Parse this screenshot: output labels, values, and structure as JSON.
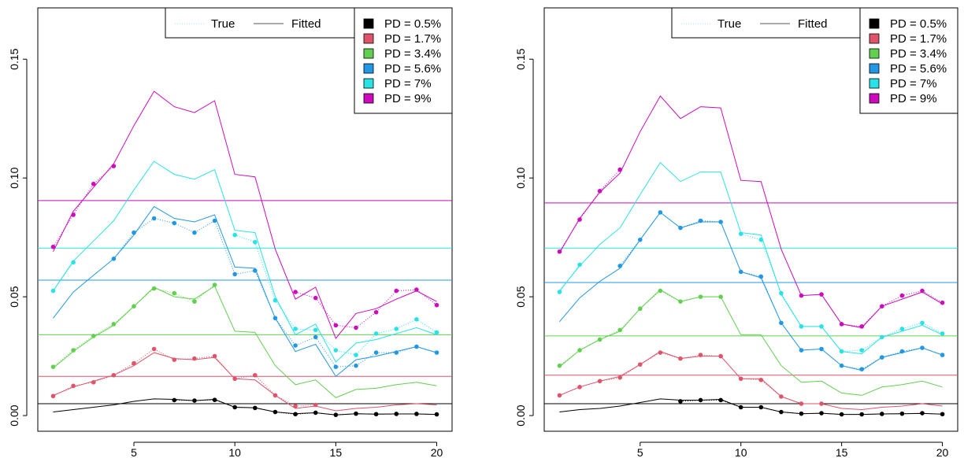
{
  "colors": {
    "PD = 0.5%": "#000000",
    "PD = 1.7%": "#DF536B",
    "PD = 3.4%": "#61D04F",
    "PD = 5.6%": "#2297E6",
    "PD = 7%": "#28E2E5",
    "PD = 9%": "#CD0BBC",
    "true_line": "#9ee8e8",
    "fitted_line": "#555555"
  },
  "chart_data": [
    {
      "type": "line",
      "xlim": [
        1,
        20
      ],
      "ylim": [
        0,
        0.165
      ],
      "x_ticks": [
        "5",
        "10",
        "15",
        "20"
      ],
      "y_ticks": [
        "0.00",
        "0.05",
        "0.10",
        "0.15"
      ],
      "style_legend": [
        "True",
        "Fitted"
      ],
      "series": [
        {
          "name": "PD = 0.5%",
          "level": 0.005,
          "fitted": [
            0.0015,
            0.0025,
            0.0035,
            0.0045,
            0.006,
            0.007,
            0.0068,
            0.0063,
            0.0068,
            0.0035,
            0.0033,
            0.0015,
            0.0008,
            0.0012,
            0.0003,
            0.0008,
            0.0006,
            0.0007,
            0.0007,
            0.0005
          ],
          "true": [
            null,
            null,
            null,
            null,
            null,
            null,
            0.0065,
            0.0063,
            0.0066,
            0.0035,
            0.0032,
            0.0015,
            0.0006,
            0.0012,
            0.0003,
            0.0008,
            0.0006,
            0.0007,
            0.0007,
            0.0005
          ]
        },
        {
          "name": "PD = 1.7%",
          "level": 0.0165,
          "fitted": [
            0.0085,
            0.012,
            0.0145,
            0.017,
            0.021,
            0.0265,
            0.024,
            0.0235,
            0.0245,
            0.0155,
            0.015,
            0.0085,
            0.003,
            0.004,
            0.002,
            0.003,
            0.0035,
            0.0045,
            0.005,
            0.0045
          ],
          "true": [
            0.0082,
            0.0125,
            0.014,
            0.017,
            0.022,
            0.028,
            0.0235,
            0.024,
            0.025,
            0.0155,
            0.017,
            0.0085,
            0.004,
            0.0045,
            null,
            null,
            null,
            null,
            null,
            null
          ]
        },
        {
          "name": "PD = 3.4%",
          "level": 0.034,
          "fitted": [
            0.02,
            0.027,
            0.033,
            0.038,
            0.046,
            0.054,
            0.05,
            0.049,
            0.0545,
            0.0355,
            0.035,
            0.021,
            0.013,
            0.015,
            0.0075,
            0.011,
            0.0115,
            0.013,
            0.014,
            0.0125
          ],
          "true": [
            0.0205,
            0.0275,
            0.0335,
            0.0385,
            0.046,
            0.0535,
            0.0515,
            0.048,
            0.055,
            null,
            null,
            null,
            null,
            null,
            null,
            null,
            null,
            null,
            null,
            null
          ]
        },
        {
          "name": "PD = 5.6%",
          "level": 0.057,
          "fitted": [
            0.041,
            0.052,
            0.059,
            0.066,
            0.076,
            0.088,
            0.083,
            0.0815,
            0.0845,
            0.0625,
            0.062,
            0.041,
            0.027,
            0.03,
            0.0165,
            0.0235,
            0.025,
            0.027,
            0.029,
            0.0265
          ],
          "true": [
            null,
            null,
            null,
            0.066,
            0.077,
            0.083,
            0.081,
            0.077,
            0.082,
            0.0595,
            0.061,
            0.041,
            0.0295,
            0.033,
            0.0205,
            0.021,
            0.0265,
            0.0265,
            0.029,
            0.0265
          ]
        },
        {
          "name": "PD = 7%",
          "level": 0.0705,
          "fitted": [
            0.0525,
            0.065,
            0.0735,
            0.082,
            0.095,
            0.107,
            0.1015,
            0.0995,
            0.1035,
            0.078,
            0.077,
            0.05,
            0.034,
            0.0385,
            0.0225,
            0.0305,
            0.032,
            0.0345,
            0.037,
            0.034
          ],
          "true": [
            0.0525,
            0.0645,
            null,
            null,
            null,
            null,
            null,
            null,
            null,
            0.076,
            0.073,
            0.0485,
            0.0365,
            0.036,
            0.0275,
            0.0255,
            0.0345,
            0.0365,
            0.0405,
            0.035
          ]
        },
        {
          "name": "PD = 9%",
          "level": 0.0905,
          "fitted": [
            0.069,
            0.086,
            0.096,
            0.106,
            0.122,
            0.1365,
            0.13,
            0.1275,
            0.1325,
            0.1015,
            0.1005,
            0.07,
            0.049,
            0.054,
            0.0325,
            0.043,
            0.045,
            0.049,
            0.0525,
            0.048
          ],
          "true": [
            0.071,
            0.0845,
            0.0975,
            0.105,
            null,
            null,
            null,
            null,
            null,
            null,
            null,
            null,
            0.052,
            0.0495,
            0.038,
            0.037,
            0.0435,
            0.0525,
            0.053,
            0.0465
          ]
        }
      ]
    },
    {
      "type": "line",
      "xlim": [
        1,
        20
      ],
      "ylim": [
        0,
        0.165
      ],
      "x_ticks": [
        "5",
        "10",
        "15",
        "20"
      ],
      "y_ticks": [
        "0.00",
        "0.05",
        "0.10",
        "0.15"
      ],
      "style_legend": [
        "True",
        "Fitted"
      ],
      "series": [
        {
          "name": "PD = 0.5%",
          "level": 0.005,
          "fitted": [
            0.0015,
            0.0025,
            0.003,
            0.004,
            0.0055,
            0.007,
            0.0065,
            0.0065,
            0.0068,
            0.0035,
            0.0035,
            0.0015,
            0.0008,
            0.001,
            0.0005,
            0.0005,
            0.0007,
            0.0008,
            0.0009,
            0.0006
          ],
          "true": [
            null,
            null,
            null,
            null,
            null,
            null,
            0.006,
            0.0065,
            0.0065,
            0.0035,
            0.0035,
            0.0015,
            0.0008,
            0.001,
            0.0005,
            0.0005,
            0.0007,
            0.0008,
            0.001,
            0.0006
          ]
        },
        {
          "name": "PD = 1.7%",
          "level": 0.017,
          "fitted": [
            0.0085,
            0.012,
            0.0145,
            0.0165,
            0.0215,
            0.027,
            0.024,
            0.025,
            0.025,
            0.0155,
            0.0155,
            0.008,
            0.005,
            0.005,
            0.003,
            0.0025,
            0.0035,
            0.004,
            0.005,
            0.004
          ],
          "true": [
            0.0085,
            0.012,
            0.0145,
            0.016,
            0.0215,
            0.0265,
            0.024,
            0.0255,
            0.025,
            0.0155,
            0.015,
            0.008,
            0.005,
            0.005,
            null,
            null,
            null,
            null,
            null,
            null
          ]
        },
        {
          "name": "PD = 3.4%",
          "level": 0.0335,
          "fitted": [
            0.0205,
            0.0275,
            0.032,
            0.0355,
            0.045,
            0.053,
            0.048,
            0.05,
            0.05,
            0.034,
            0.034,
            0.021,
            0.014,
            0.0145,
            0.0095,
            0.0085,
            0.012,
            0.013,
            0.0145,
            0.012
          ],
          "true": [
            0.021,
            0.0275,
            0.032,
            0.036,
            0.045,
            0.0525,
            0.048,
            0.05,
            0.05,
            null,
            null,
            null,
            null,
            null,
            null,
            null,
            null,
            null,
            null,
            null
          ]
        },
        {
          "name": "PD = 5.6%",
          "level": 0.056,
          "fitted": [
            0.0395,
            0.0495,
            0.0565,
            0.062,
            0.074,
            0.0855,
            0.079,
            0.0815,
            0.0815,
            0.0605,
            0.058,
            0.039,
            0.0275,
            0.028,
            0.021,
            0.019,
            0.0245,
            0.0265,
            0.0285,
            0.0255
          ],
          "true": [
            null,
            null,
            null,
            0.063,
            0.074,
            0.0855,
            0.079,
            0.082,
            0.0815,
            0.0605,
            0.0585,
            0.039,
            0.0275,
            0.028,
            0.021,
            0.0195,
            0.0245,
            0.027,
            0.0285,
            0.0255
          ]
        },
        {
          "name": "PD = 7%",
          "level": 0.0705,
          "fitted": [
            0.0525,
            0.063,
            0.072,
            0.079,
            0.093,
            0.1065,
            0.0985,
            0.1025,
            0.1025,
            0.077,
            0.076,
            0.051,
            0.0375,
            0.0375,
            0.027,
            0.026,
            0.033,
            0.0355,
            0.038,
            0.034
          ],
          "true": [
            0.052,
            0.0635,
            null,
            null,
            null,
            null,
            null,
            null,
            null,
            0.0765,
            0.074,
            0.0515,
            0.0375,
            0.0375,
            0.027,
            0.0275,
            0.033,
            0.0365,
            0.039,
            0.0345
          ]
        },
        {
          "name": "PD = 9%",
          "level": 0.0895,
          "fitted": [
            0.0685,
            0.083,
            0.094,
            0.102,
            0.1195,
            0.1345,
            0.125,
            0.13,
            0.1295,
            0.099,
            0.0985,
            0.07,
            0.0505,
            0.051,
            0.0385,
            0.037,
            0.046,
            0.049,
            0.052,
            0.047
          ],
          "true": [
            0.069,
            0.0825,
            0.0945,
            0.1035,
            null,
            null,
            null,
            null,
            null,
            null,
            null,
            null,
            0.0505,
            0.051,
            0.0385,
            0.0375,
            0.046,
            0.0505,
            0.0525,
            0.0475
          ]
        }
      ]
    }
  ]
}
